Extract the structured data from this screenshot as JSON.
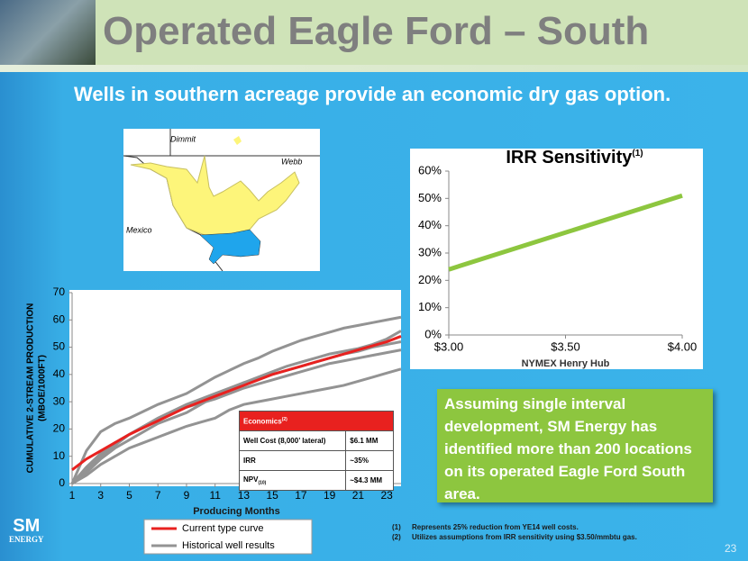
{
  "title": "Operated Eagle Ford – South",
  "subtitle": "Wells in southern acreage provide an economic dry gas option.",
  "map": {
    "labels": [
      "Dimmit",
      "Webb",
      "Mexico"
    ]
  },
  "chart_data": [
    {
      "type": "line",
      "ylabel": [
        "CUMULATIVE 2-STREAM PRODUCTION",
        "(MBOE/1000FT)"
      ],
      "xlabel": "Producing Months",
      "x": [
        1,
        2,
        3,
        4,
        5,
        6,
        7,
        8,
        9,
        10,
        11,
        12,
        13,
        14,
        15,
        16,
        17,
        18,
        19,
        20,
        21,
        22,
        23,
        24
      ],
      "xlim": [
        1,
        24
      ],
      "xticks": [
        1,
        3,
        5,
        7,
        9,
        11,
        13,
        15,
        17,
        19,
        21,
        23
      ],
      "ylim": [
        0,
        70
      ],
      "yticks": [
        0,
        10,
        20,
        30,
        40,
        50,
        60,
        70
      ],
      "grid": false,
      "series": [
        {
          "name": "Current type curve",
          "color": "#e8211f",
          "values": [
            5,
            9,
            12,
            15,
            18,
            20.5,
            23,
            25.5,
            28,
            30,
            32,
            34,
            36,
            38,
            40,
            41.5,
            43,
            44.5,
            46,
            47.5,
            49,
            50.5,
            52,
            54
          ]
        },
        {
          "name": "Historical well results",
          "color": "#939393",
          "values": [
            0,
            12,
            19,
            22,
            24,
            26.5,
            29,
            31,
            33,
            36,
            39,
            41.5,
            44,
            46,
            48.5,
            50.5,
            52.5,
            54,
            55.5,
            57,
            58,
            59,
            60,
            61
          ]
        },
        {
          "color": "#939393",
          "values": [
            0,
            5,
            10,
            14,
            18,
            21,
            24,
            26.5,
            29,
            31,
            33,
            35,
            37,
            38.5,
            40,
            41.5,
            43,
            44.5,
            46,
            47.5,
            48.5,
            50,
            51,
            52
          ]
        },
        {
          "color": "#939393",
          "values": [
            0,
            3,
            7,
            10,
            13,
            15,
            17,
            19,
            21,
            22.5,
            24,
            27,
            29,
            30,
            31,
            32,
            33,
            34,
            35,
            36,
            37.5,
            39,
            40.5,
            42
          ]
        },
        {
          "color": "#939393",
          "values": [
            0,
            4,
            9,
            13,
            16,
            19,
            22,
            24,
            26,
            29,
            32,
            34.5,
            37,
            39,
            41,
            43,
            44.5,
            46,
            47.5,
            48.5,
            49.5,
            51,
            53,
            56
          ]
        },
        {
          "color": "#939393",
          "values": [
            0,
            6,
            11,
            15,
            18,
            21,
            23.5,
            26,
            28,
            29.5,
            31,
            33,
            35,
            36.5,
            38,
            39.5,
            41,
            42.5,
            44,
            45,
            46,
            47,
            48,
            49
          ]
        }
      ]
    },
    {
      "type": "line",
      "title": "IRR Sensitivity",
      "title_note": "(1)",
      "xlabel": "NYMEX Henry Hub",
      "x": [
        3,
        4
      ],
      "xlim": [
        3,
        4
      ],
      "xticks": [
        {
          "value": 3,
          "label": "$3.00"
        },
        {
          "value": 3.5,
          "label": "$3.50"
        },
        {
          "value": 4,
          "label": "$4.00"
        }
      ],
      "ylim": [
        0,
        60
      ],
      "yticks": [
        {
          "value": 0,
          "label": "0%"
        },
        {
          "value": 10,
          "label": "10%"
        },
        {
          "value": 20,
          "label": "20%"
        },
        {
          "value": 30,
          "label": "30%"
        },
        {
          "value": 40,
          "label": "40%"
        },
        {
          "value": 50,
          "label": "50%"
        },
        {
          "value": 60,
          "label": "60%"
        }
      ],
      "grid": false,
      "series": [
        {
          "color": "#8dc63f",
          "values": [
            24,
            51
          ]
        }
      ]
    }
  ],
  "table": {
    "header": "Economics",
    "header_note": "(2)",
    "rows": [
      [
        "Well Cost (8,000’ lateral)",
        "$6.1 MM"
      ],
      [
        "IRR",
        "~35%"
      ],
      [
        "NPV",
        "~$4.3 MM"
      ]
    ],
    "npv_sub": "(10)"
  },
  "callout": "Assuming single interval development, SM Energy has identified more than 200 locations on its operated Eagle Ford South area.",
  "footnotes": [
    [
      "(1)",
      "Represents 25% reduction from YE14 well costs."
    ],
    [
      "(2)",
      "Utilizes assumptions from IRR sensitivity using $3.50/mmbtu gas."
    ]
  ],
  "logo": [
    "SM",
    "ENERGY"
  ],
  "page_number": "23"
}
